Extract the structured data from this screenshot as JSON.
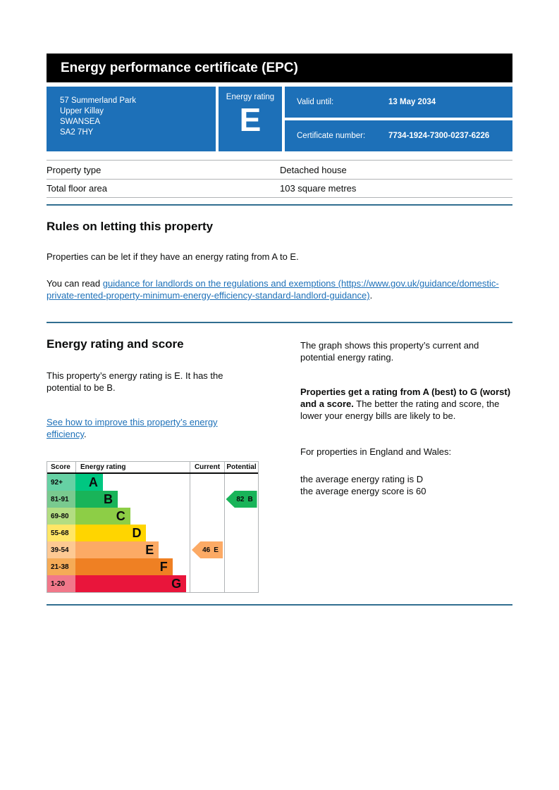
{
  "header": {
    "title": "Energy performance certificate (EPC)"
  },
  "summary": {
    "address_lines": [
      "57 Summerland Park",
      "Upper Killay",
      "SWANSEA",
      "SA2 7HY"
    ],
    "energy_rating_label": "Energy rating",
    "energy_rating": "E",
    "valid_until_label": "Valid until:",
    "valid_until_value": "13 May 2034",
    "certificate_number_label": "Certificate number:",
    "certificate_number_value": "7734-1924-7300-0237-6226"
  },
  "property_details": {
    "rows": [
      {
        "label": "Property type",
        "value": "Detached house"
      },
      {
        "label": "Total floor area",
        "value": "103 square metres"
      }
    ]
  },
  "rules_section": {
    "heading": "Rules on letting this property",
    "paragraph": "Properties can be let if they have an energy rating from A to E.",
    "read_prefix": "You can read ",
    "link_text": "guidance for landlords on the regulations and exemptions (https://www.gov.uk/guidance/domestic-private-rented-property-minimum-energy-efficiency-standard-landlord-guidance)",
    "read_suffix": "."
  },
  "rating_section": {
    "heading": "Energy rating and score",
    "intro": "This property’s energy rating is E. It has the potential to be B.",
    "improve_link_text": "See how to improve this property’s energy efficiency",
    "improve_suffix": ".",
    "right": {
      "p1": "The graph shows this property’s current and potential energy rating.",
      "p2_bold": "Properties get a rating from A (best) to G (worst) and a score.",
      "p2_rest": " The better the rating and score, the lower your energy bills are likely to be.",
      "p3": "For properties in England and Wales:",
      "p4_line1": "the average energy rating is D",
      "p4_line2": "the average energy score is 60"
    }
  },
  "chart_data": {
    "type": "bar",
    "title": "Energy rating and score chart",
    "columns": [
      "Score",
      "Energy rating",
      "Current",
      "Potential"
    ],
    "bands": [
      {
        "score_range": "92+",
        "letter": "A",
        "color": "#00c781",
        "tint": "#66d1a4",
        "width_pct": 24
      },
      {
        "score_range": "81-91",
        "letter": "B",
        "color": "#19b459",
        "tint": "#79ca8f",
        "width_pct": 37
      },
      {
        "score_range": "69-80",
        "letter": "C",
        "color": "#8dce46",
        "tint": "#b3dd82",
        "width_pct": 48
      },
      {
        "score_range": "55-68",
        "letter": "D",
        "color": "#ffd500",
        "tint": "#ffe666",
        "width_pct": 62
      },
      {
        "score_range": "39-54",
        "letter": "E",
        "color": "#fcaa65",
        "tint": "#fdc993",
        "width_pct": 73
      },
      {
        "score_range": "21-38",
        "letter": "F",
        "color": "#ef8023",
        "tint": "#f5ab57",
        "width_pct": 85
      },
      {
        "score_range": "1-20",
        "letter": "G",
        "color": "#e9153b",
        "tint": "#f1788a",
        "width_pct": 97
      }
    ],
    "current": {
      "score": 46,
      "letter": "E",
      "band_index": 4,
      "color": "#fcaa65"
    },
    "potential": {
      "score": 82,
      "letter": "B",
      "band_index": 1,
      "color": "#19b459"
    }
  },
  "colors": {
    "govuk_blue": "#1d70b8",
    "header_bg": "#000000",
    "divider_blue": "#316e90",
    "border_gray": "#b1b4b6",
    "link_blue": "#1d70b8",
    "text": "#0b0c0c"
  }
}
